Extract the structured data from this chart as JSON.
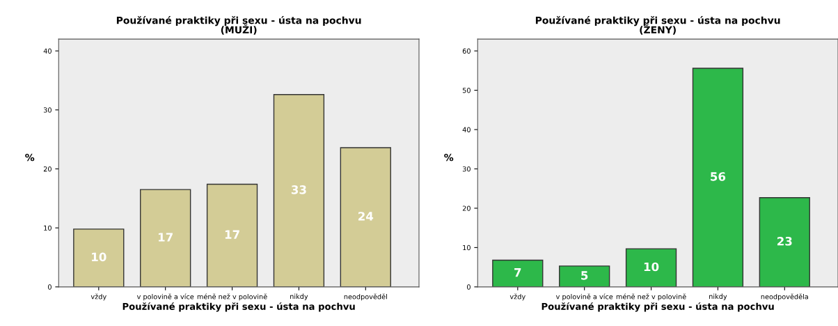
{
  "chart_data": [
    {
      "type": "bar",
      "title": "Používané praktiky při sexu - ústa na pochvu\n(MUŽI)",
      "xlabel": "Používané praktiky při sexu - ústa na pochvu",
      "ylabel": "%",
      "categories": [
        "vždy",
        "v polovině a více",
        "méně než v polovině",
        "nikdy",
        "neodpověděl"
      ],
      "values": [
        9.8,
        16.5,
        17.4,
        32.6,
        23.6
      ],
      "value_labels": [
        "10",
        "17",
        "17",
        "33",
        "24"
      ],
      "color": "#d3cc96",
      "ylim": [
        0,
        42
      ],
      "yticks": [
        0,
        10,
        20,
        30,
        40
      ],
      "grid": false
    },
    {
      "type": "bar",
      "title": "Používané praktiky při sexu - ústa na pochvu\n(ŽENY)",
      "xlabel": "Používané praktiky při sexu - ústa na pochvu",
      "ylabel": "%",
      "categories": [
        "vždy",
        "v polovině a více",
        "méně než v polovině",
        "nikdy",
        "neodpověděla"
      ],
      "values": [
        6.8,
        5.3,
        9.7,
        55.6,
        22.7
      ],
      "value_labels": [
        "7",
        "5",
        "10",
        "56",
        "23"
      ],
      "color": "#2db84a",
      "ylim": [
        0,
        63
      ],
      "yticks": [
        0,
        10,
        20,
        30,
        40,
        50,
        60
      ],
      "grid": false
    }
  ]
}
